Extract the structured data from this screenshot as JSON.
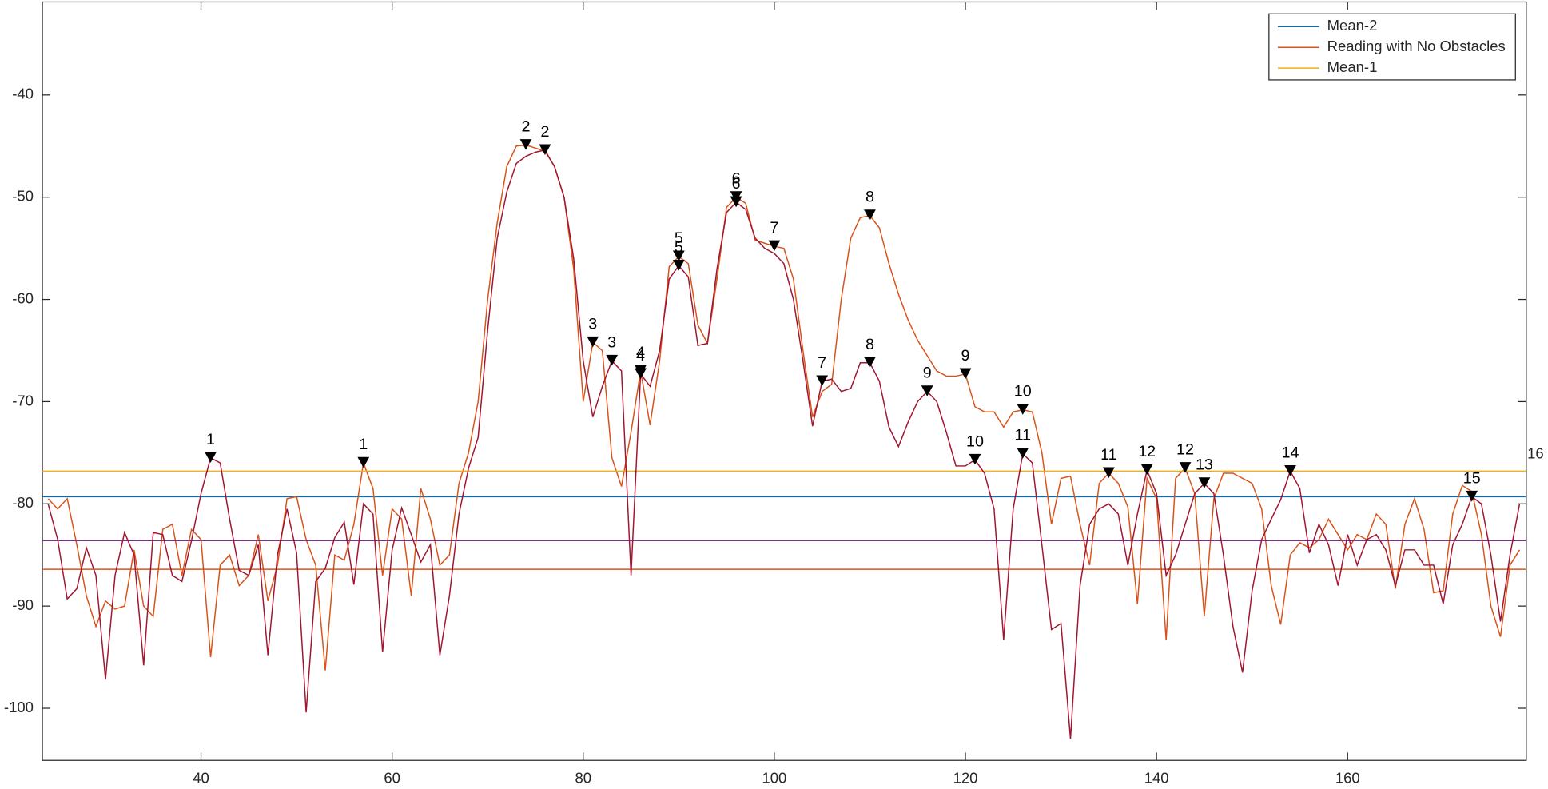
{
  "chart_data": {
    "type": "line",
    "xlim": [
      23.4,
      178.7
    ],
    "ylim": [
      -105.1,
      -30.9
    ],
    "xticks": [
      40,
      60,
      80,
      100,
      120,
      140,
      160
    ],
    "yticks": [
      -100,
      -90,
      -80,
      -70,
      -60,
      -50,
      -40
    ],
    "grid": false,
    "legend": "northeast",
    "annotations": [
      "16"
    ],
    "x": [
      24,
      25,
      26,
      27,
      28,
      29,
      30,
      31,
      32,
      33,
      34,
      35,
      36,
      37,
      38,
      39,
      40,
      41,
      42,
      43,
      44,
      45,
      46,
      47,
      48,
      49,
      50,
      51,
      52,
      53,
      54,
      55,
      56,
      57,
      58,
      59,
      60,
      61,
      62,
      63,
      64,
      65,
      66,
      67,
      68,
      69,
      70,
      71,
      72,
      73,
      74,
      75,
      76,
      77,
      78,
      79,
      80,
      81,
      82,
      83,
      84,
      85,
      86,
      87,
      88,
      89,
      90,
      91,
      92,
      93,
      94,
      95,
      96,
      97,
      98,
      99,
      100,
      101,
      102,
      103,
      104,
      105,
      106,
      107,
      108,
      109,
      110,
      111,
      112,
      113,
      114,
      115,
      116,
      117,
      118,
      119,
      120,
      121,
      122,
      123,
      124,
      125,
      126,
      127,
      128,
      129,
      130,
      131,
      132,
      133,
      134,
      135,
      136,
      137,
      138,
      139,
      140,
      141,
      142,
      143,
      144,
      145,
      146,
      147,
      148,
      149,
      150,
      151,
      152,
      153,
      154,
      155,
      156,
      157,
      158,
      159,
      160,
      161,
      162,
      163,
      164,
      165,
      166,
      167,
      168,
      169,
      170,
      171,
      172,
      173,
      174,
      175,
      176,
      177,
      178
    ],
    "series": [
      {
        "name": "Mean-2",
        "color": "#0072bd",
        "value": -79.3
      },
      {
        "name": "Reading with No Obstacles",
        "color": "#d95319",
        "values": [
          -79.5,
          -80.5,
          -79.5,
          -84,
          -89,
          -92,
          -89.5,
          -90.3,
          -90,
          -84.5,
          -90,
          -91,
          -82.5,
          -82,
          -87,
          -82.5,
          -83.5,
          -95,
          -86,
          -85,
          -88,
          -87,
          -83,
          -89.5,
          -86,
          -79.5,
          -79.3,
          -83.5,
          -86,
          -96.3,
          -85,
          -85.5,
          -82,
          -76,
          -78.5,
          -87,
          -80.5,
          -81.5,
          -89,
          -78.5,
          -81.5,
          -86,
          -85,
          -78,
          -75,
          -70,
          -60,
          -52.5,
          -47,
          -45,
          -44.9,
          -45.2,
          -45.5,
          -47,
          -50,
          -57,
          -70,
          -64.2,
          -65,
          -75.5,
          -78.3,
          -73,
          -67,
          -72.3,
          -66,
          -56.8,
          -55.8,
          -56.5,
          -62.5,
          -64.3,
          -58,
          -51,
          -50,
          -50.6,
          -54.2,
          -54.5,
          -54.8,
          -55,
          -58,
          -65,
          -71.5,
          -69,
          -68.3,
          -60,
          -54,
          -52,
          -51.8,
          -53,
          -56.5,
          -59.5,
          -62,
          -64,
          -65.5,
          -67,
          -67.5,
          -67.5,
          -67.3,
          -70.5,
          -71,
          -71,
          -72.5,
          -71,
          -70.8,
          -71,
          -75,
          -82,
          -77.5,
          -77.3,
          -82,
          -86,
          -78,
          -77,
          -78,
          -80.3,
          -89.8,
          -77.5,
          -79.5,
          -93.3,
          -77.5,
          -76.5,
          -79,
          -91,
          -79.5,
          -77,
          -77,
          -77.5,
          -78,
          -80.5,
          -88,
          -91.8,
          -85,
          -83.8,
          -84.3,
          -83.5,
          -81.5,
          -83,
          -84.5,
          -83,
          -83.5,
          -81,
          -82,
          -88.3,
          -82,
          -79.5,
          -82.5,
          -88.7,
          -88.5,
          -81,
          -78.2,
          -78.8,
          -83,
          -90,
          -93,
          -86,
          -84.5
        ],
        "peaks": [
          57,
          74,
          81,
          86,
          90,
          96,
          100,
          110,
          120,
          126,
          135,
          143
        ],
        "peak_labels": [
          "1",
          "2",
          "3",
          "4",
          "5",
          "6",
          "7",
          "8",
          "9",
          "10",
          "11",
          "12"
        ]
      },
      {
        "name": "Mean-1",
        "color": "#edb120",
        "value": -76.8
      },
      {
        "color": "#7e2f8e",
        "value": -83.6
      },
      {
        "color": "#d95319",
        "value": -86.4
      },
      {
        "color": "#a2142f",
        "values": [
          -80,
          -83.5,
          -89.3,
          -88.3,
          -84.3,
          -87,
          -97.2,
          -87,
          -82.8,
          -85,
          -95.8,
          -82.8,
          -83,
          -87,
          -87.6,
          -83.6,
          -79,
          -75.5,
          -76,
          -81.5,
          -86.5,
          -87,
          -84,
          -94.8,
          -85,
          -80.5,
          -84.8,
          -100.4,
          -87.6,
          -86.3,
          -83.3,
          -81.8,
          -87.9,
          -80,
          -81,
          -94.5,
          -84.5,
          -80.4,
          -83,
          -85.7,
          -84,
          -94.8,
          -89,
          -81,
          -76.5,
          -73.5,
          -63,
          -54,
          -49.5,
          -46.7,
          -46,
          -45.6,
          -45.4,
          -47,
          -50,
          -56,
          -66,
          -71.5,
          -68.5,
          -66,
          -67,
          -87,
          -67.3,
          -68.5,
          -65,
          -58,
          -56.7,
          -57.8,
          -64.5,
          -64.3,
          -57,
          -51.5,
          -50.5,
          -51.2,
          -54,
          -55,
          -55.5,
          -56.5,
          -60,
          -66,
          -72.4,
          -68,
          -67.8,
          -69,
          -68.7,
          -66.2,
          -66.2,
          -68,
          -72.5,
          -74.4,
          -72,
          -70,
          -69,
          -70,
          -73,
          -76.3,
          -76.3,
          -75.7,
          -77,
          -80.5,
          -93.3,
          -80.5,
          -75.1,
          -76,
          -84,
          -92.3,
          -91.7,
          -103,
          -88,
          -82,
          -80.5,
          -80,
          -81,
          -86,
          -81,
          -76.7,
          -79,
          -87,
          -85,
          -82,
          -79,
          -78,
          -79,
          -85,
          -92,
          -96.5,
          -88.5,
          -83.5,
          -81.5,
          -79.6,
          -76.8,
          -78.5,
          -84.8,
          -82,
          -84,
          -88,
          -83,
          -86,
          -83.5,
          -83,
          -84.5,
          -88,
          -84.5,
          -84.5,
          -86,
          -86,
          -89.8,
          -84,
          -82,
          -79.3,
          -80,
          -85,
          -91.5,
          -85,
          -80
        ],
        "peaks": [
          41,
          76,
          83,
          86,
          90,
          96,
          105,
          110,
          116,
          121,
          126,
          139,
          145,
          154,
          173
        ],
        "peak_labels": [
          "1",
          "2",
          "3",
          "4",
          "5",
          "6",
          "7",
          "8",
          "9",
          "10",
          "11",
          "12",
          "13",
          "14",
          "15"
        ]
      }
    ]
  }
}
